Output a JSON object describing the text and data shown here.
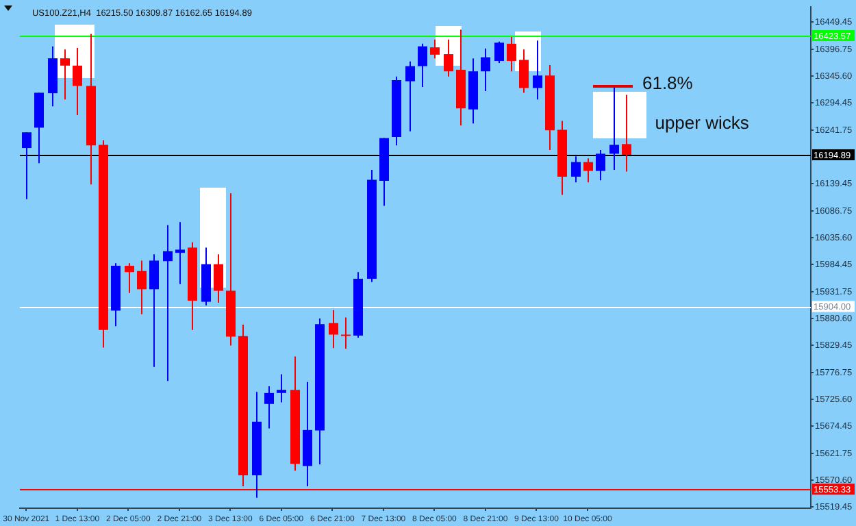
{
  "chart_data": {
    "type": "candlestick",
    "title": "US100.Z21,H4  16215.50 16309.87 16162.65 16194.89",
    "categories": [
      "30 Nov 2021",
      null,
      null,
      null,
      "1 Dec 13:00",
      null,
      null,
      null,
      "2 Dec 05:00",
      null,
      null,
      null,
      "2 Dec 21:00",
      null,
      null,
      null,
      "3 Dec 13:00",
      null,
      null,
      null,
      "6 Dec 05:00",
      null,
      null,
      null,
      "6 Dec 21:00",
      null,
      null,
      null,
      "7 Dec 13:00",
      null,
      null,
      null,
      "8 Dec 05:00",
      null,
      null,
      null,
      "8 Dec 21:00",
      null,
      null,
      null,
      "9 Dec 13:00",
      null,
      null,
      null,
      "10 Dec 05:00",
      null,
      null,
      null,
      null,
      null,
      null,
      null,
      null,
      null,
      null,
      null,
      null,
      null,
      null,
      null,
      null,
      null
    ],
    "ohlc": [
      [
        16208,
        16238,
        16110,
        16238
      ],
      [
        16247,
        16314,
        16179,
        16314
      ],
      [
        16313,
        16403,
        16288,
        16380
      ],
      [
        16380,
        16397,
        16301,
        16366
      ],
      [
        16366,
        16400,
        16271,
        16327
      ],
      [
        16327,
        16427,
        16138,
        16213
      ],
      [
        16214,
        16223,
        15825,
        15859
      ],
      [
        15896,
        15987,
        15866,
        15982
      ],
      [
        15982,
        15987,
        15930,
        15970
      ],
      [
        15972,
        15992,
        15889,
        15937
      ],
      [
        15937,
        16004,
        15788,
        15992
      ],
      [
        15991,
        16060,
        15761,
        16010
      ],
      [
        16007,
        16066,
        15947,
        16013
      ],
      [
        16017,
        16027,
        15859,
        15915
      ],
      [
        15913,
        16017,
        15906,
        15985
      ],
      [
        15985,
        16004,
        15911,
        15934
      ],
      [
        15934,
        16121,
        15829,
        15846
      ],
      [
        15847,
        15869,
        15559,
        15580
      ],
      [
        15580,
        15740,
        15537,
        15683
      ],
      [
        15717,
        15751,
        15670,
        15738
      ],
      [
        15738,
        15774,
        15720,
        15744
      ],
      [
        15744,
        15808,
        15589,
        15602
      ],
      [
        15598,
        15759,
        15559,
        15667
      ],
      [
        15666,
        15881,
        15601,
        15870
      ],
      [
        15872,
        15897,
        15824,
        15850
      ],
      [
        15850,
        15883,
        15823,
        15848
      ],
      [
        15848,
        15970,
        15844,
        15957
      ],
      [
        15957,
        16166,
        15951,
        16147
      ],
      [
        16145,
        16227,
        16097,
        16227
      ],
      [
        16229,
        16345,
        16213,
        16338
      ],
      [
        16336,
        16374,
        16240,
        16365
      ],
      [
        16365,
        16408,
        16325,
        16403
      ],
      [
        16401,
        16416,
        16380,
        16387
      ],
      [
        16388,
        16416,
        16345,
        16355
      ],
      [
        16358,
        16435,
        16251,
        16284
      ],
      [
        16282,
        16380,
        16255,
        16355
      ],
      [
        16355,
        16399,
        16317,
        16382
      ],
      [
        16375,
        16412,
        16371,
        16410
      ],
      [
        16408,
        16421,
        16355,
        16375
      ],
      [
        16377,
        16397,
        16314,
        16323
      ],
      [
        16323,
        16414,
        16301,
        16347
      ],
      [
        16347,
        16367,
        16204,
        16242
      ],
      [
        16243,
        16260,
        16118,
        16153
      ],
      [
        16153,
        16192,
        16142,
        16181
      ],
      [
        16181,
        16188,
        16142,
        16164
      ],
      [
        16164,
        16204,
        16146,
        16197
      ],
      [
        16197,
        16327,
        16166,
        16214
      ],
      [
        16215.5,
        16309.87,
        16162.65,
        16194.89
      ],
      null,
      null,
      null,
      null,
      null,
      null,
      null,
      null,
      null,
      null,
      null,
      null,
      null,
      null
    ],
    "colors": [
      "#0000ff",
      "#0000ff",
      "#0000ff",
      "#ff0000",
      "#ff0000",
      "#ff0000",
      "#ff0000",
      "#0000ff",
      "#ff0000",
      "#ff0000",
      "#0000ff",
      "#0000ff",
      "#0000ff",
      "#ff0000",
      "#0000ff",
      "#ff0000",
      "#ff0000",
      "#ff0000",
      "#0000ff",
      "#0000ff",
      "#0000ff",
      "#ff0000",
      "#0000ff",
      "#0000ff",
      "#ff0000",
      "#ff0000",
      "#0000ff",
      "#0000ff",
      "#0000ff",
      "#0000ff",
      "#0000ff",
      "#0000ff",
      "#ff0000",
      "#ff0000",
      "#ff0000",
      "#0000ff",
      "#0000ff",
      "#0000ff",
      "#ff0000",
      "#ff0000",
      "#0000ff",
      "#ff0000",
      "#ff0000",
      "#0000ff",
      "#ff0000",
      "#0000ff",
      "#0000ff",
      "#ff0000",
      null,
      null,
      null,
      null,
      null,
      null,
      null,
      null,
      null,
      null,
      null,
      null,
      null,
      null
    ],
    "ylim": [
      15517,
      16479
    ],
    "yticks": [
      16449.45,
      16396.75,
      {
        "value": 16345.6,
        "label": "16345.60"
      },
      16294.45,
      16241.75,
      16139.45,
      16086.75,
      {
        "value": 16035.6,
        "label": "16035.60"
      },
      15984.45,
      15931.75,
      {
        "value": 15880.6,
        "label": "15880.60"
      },
      15829.45,
      15776.75,
      {
        "value": 15725.6,
        "label": "15725.60"
      },
      15674.45,
      15621.75,
      {
        "value": 15570.6,
        "label": "15570.60"
      },
      15519.45
    ],
    "ref_lines": [
      {
        "axis": "y",
        "value": 16423.57,
        "label": "16423.57",
        "color": "#00ff00"
      },
      {
        "axis": "y",
        "value": 16194.89,
        "label": "16194.89",
        "color": "#000000"
      },
      {
        "axis": "y",
        "value": 15904,
        "label": "15904.00",
        "color": "#ffffff"
      },
      {
        "axis": "y",
        "value": 15553.33,
        "label": "15553.33",
        "color": "#ff0000"
      }
    ],
    "annotations": [
      "61.8%",
      "upper wicks"
    ]
  }
}
